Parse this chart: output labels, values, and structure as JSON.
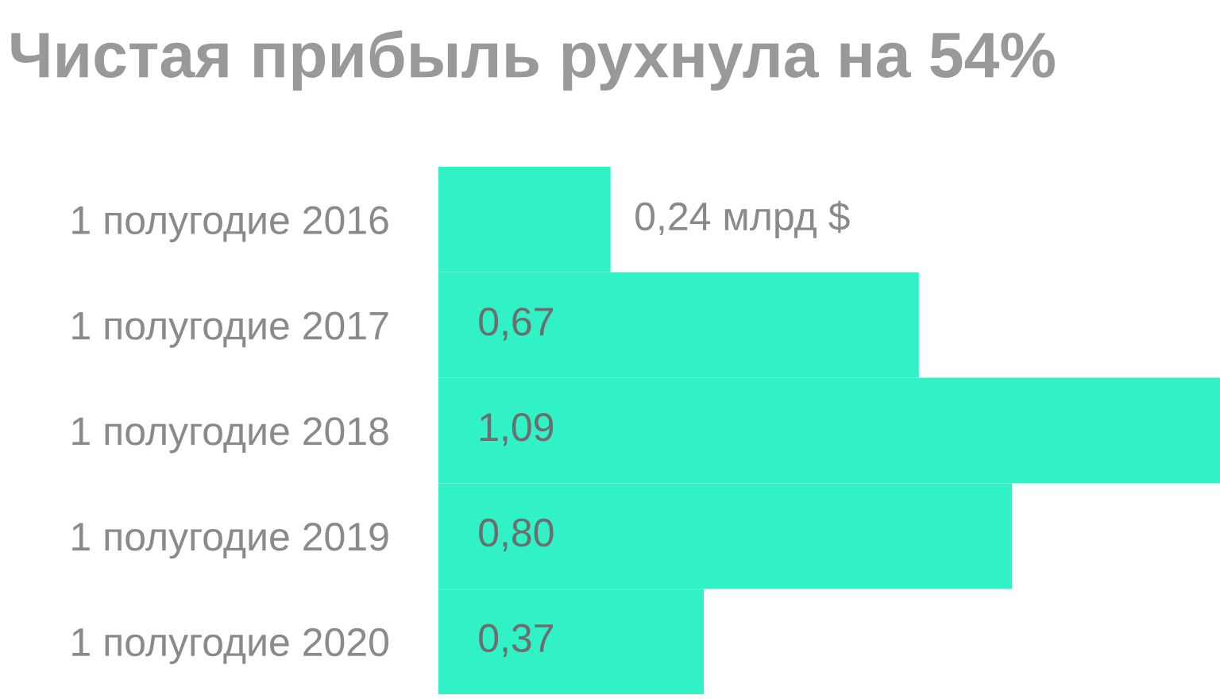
{
  "chart_data": {
    "type": "bar",
    "orientation": "horizontal",
    "title": "Чистая прибыль рухнула на 54%",
    "categories": [
      "1 полугодие 2016",
      "1 полугодие 2017",
      "1 полугодие 2018",
      "1 полугодие 2019",
      "1 полугодие 2020"
    ],
    "values": [
      0.24,
      0.67,
      1.09,
      0.8,
      0.37
    ],
    "value_labels": [
      "0,24 млрд $",
      "0,67",
      "1,09",
      "0,80",
      "0,37"
    ],
    "color": "#30f2c6",
    "grid": false,
    "legend": false
  }
}
